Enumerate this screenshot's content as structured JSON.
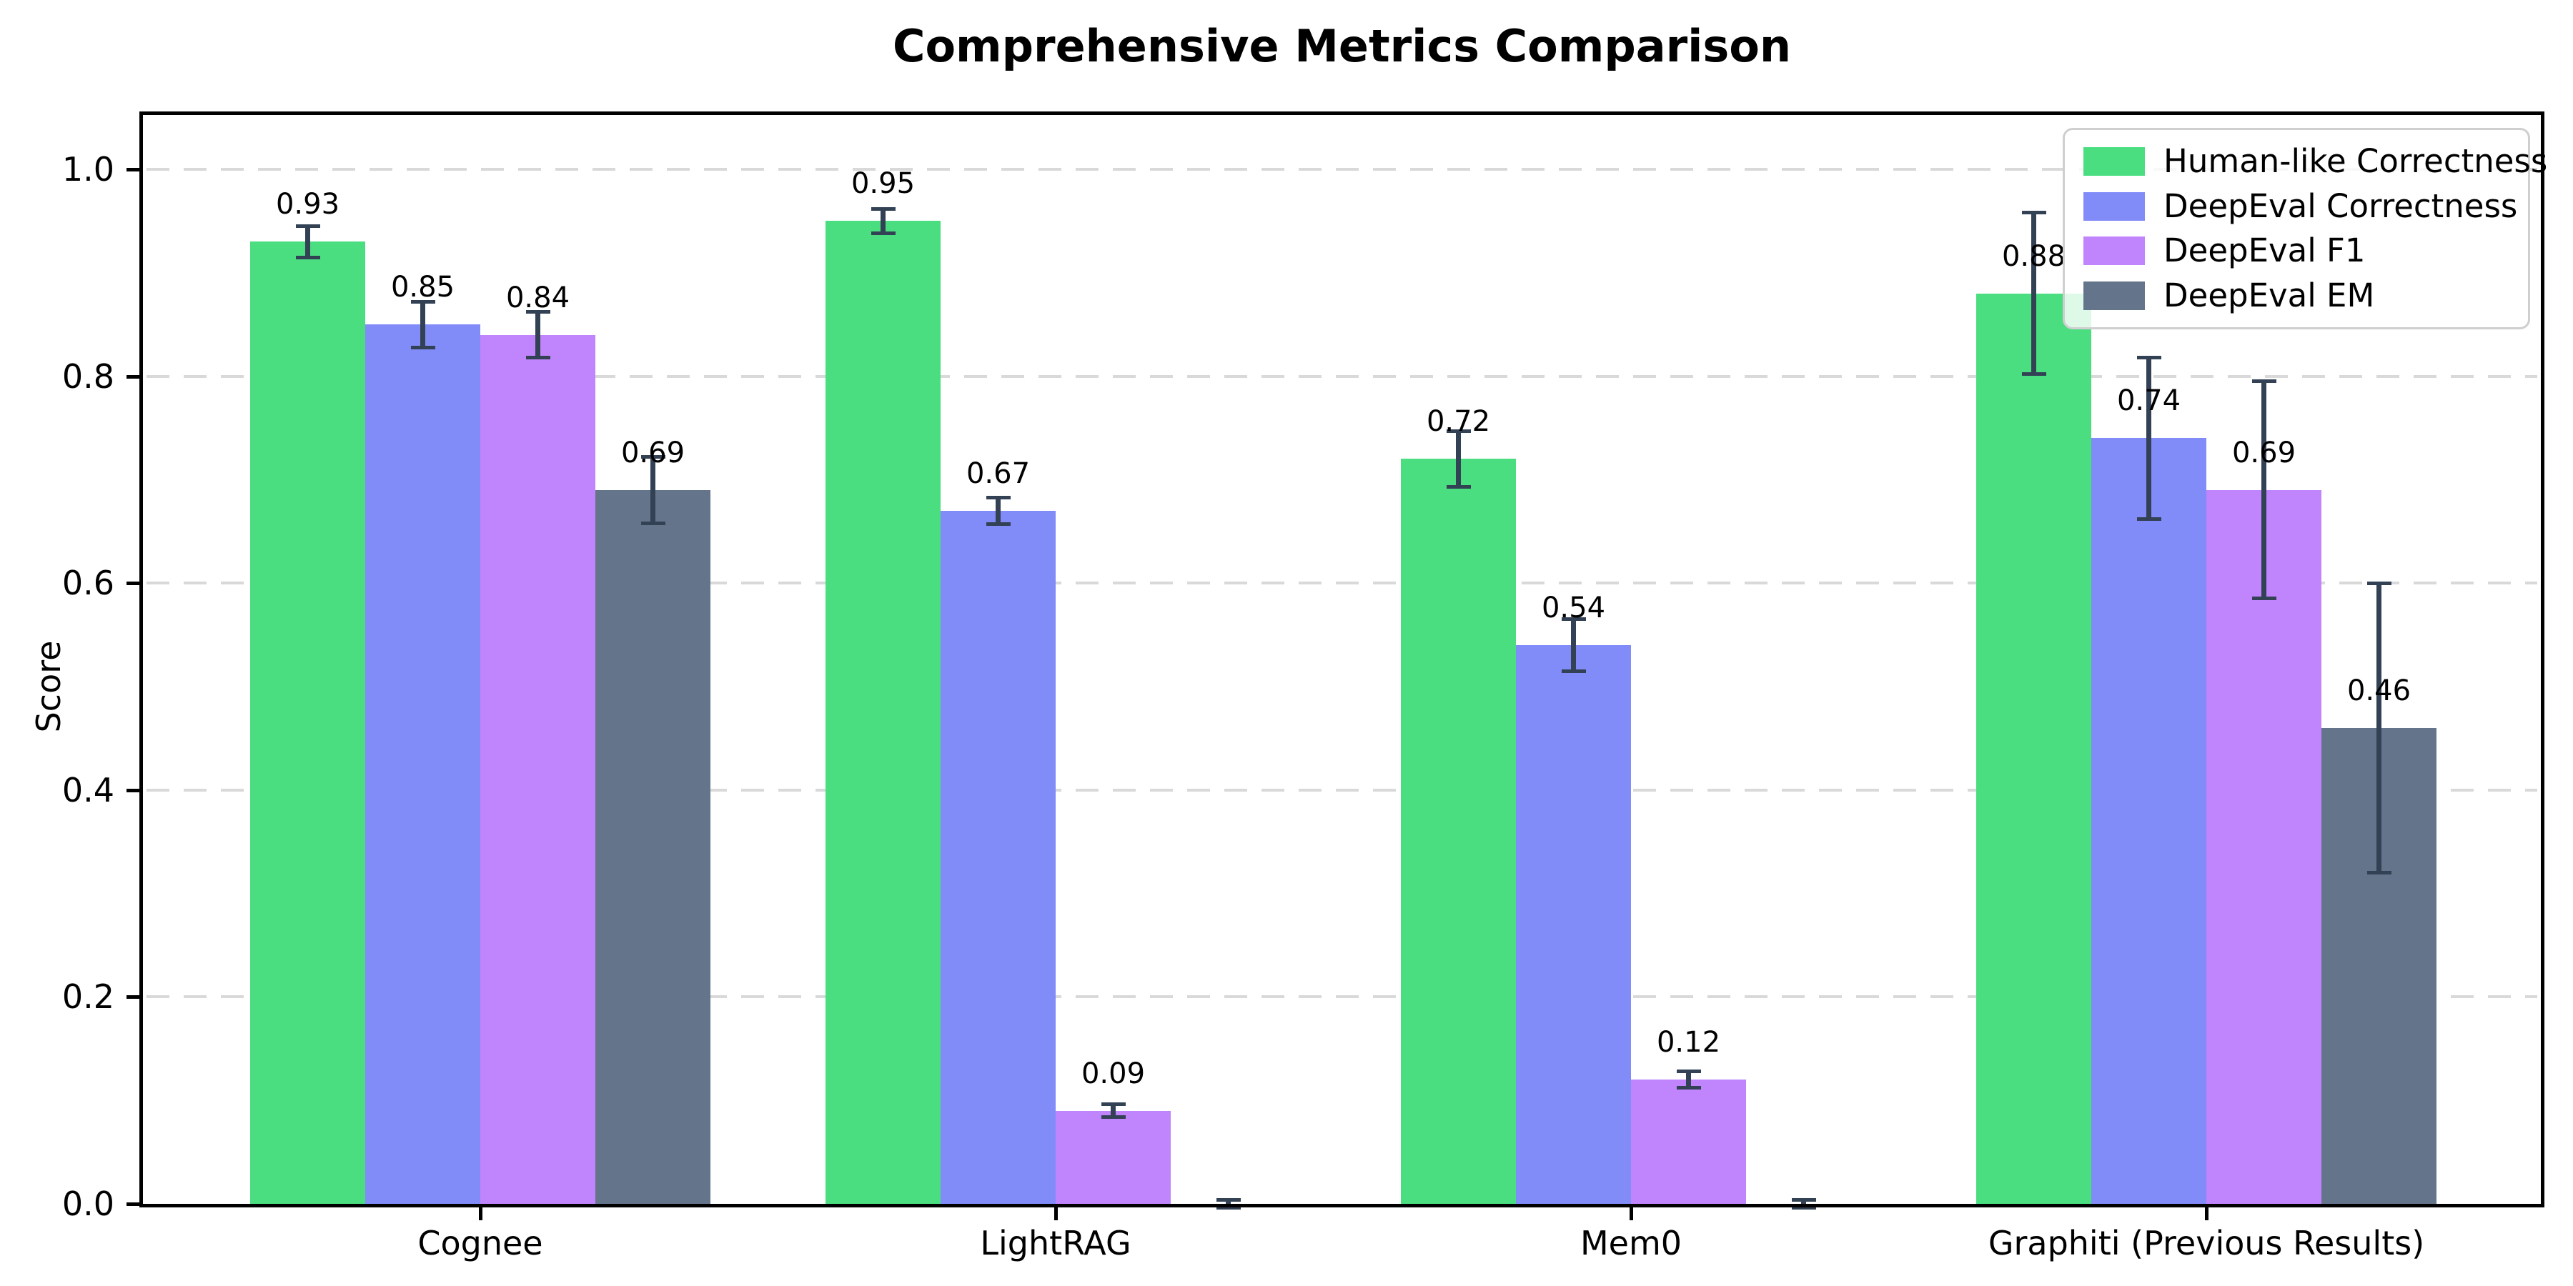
{
  "title": "Comprehensive Metrics Comparison",
  "chart_data": {
    "type": "bar",
    "title": "Comprehensive Metrics Comparison",
    "xlabel": "",
    "ylabel": "Score",
    "ylim": [
      0.0,
      1.05
    ],
    "yticks": [
      0.0,
      0.2,
      0.4,
      0.6,
      0.8,
      1.0
    ],
    "ytick_labels": [
      "0.0",
      "0.2",
      "0.4",
      "0.6",
      "0.8",
      "1.0"
    ],
    "grid": "horizontal dashed",
    "legend_position": "upper right",
    "background_color": "#ffffff",
    "error_bar_color": "#334155",
    "categories": [
      "Cognee",
      "LightRAG",
      "Mem0",
      "Graphiti (Previous Results)"
    ],
    "series": [
      {
        "name": "Human-like Correctness",
        "color": "#4ade80",
        "values": [
          0.93,
          0.95,
          0.72,
          0.88
        ],
        "errors": [
          0.015,
          0.012,
          0.027,
          0.078
        ],
        "labels": [
          "0.93",
          "0.95",
          "0.72",
          "0.88"
        ]
      },
      {
        "name": "DeepEval Correctness",
        "color": "#818cf8",
        "values": [
          0.85,
          0.67,
          0.54,
          0.74
        ],
        "errors": [
          0.022,
          0.013,
          0.025,
          0.078
        ],
        "labels": [
          "0.85",
          "0.67",
          "0.54",
          "0.74"
        ]
      },
      {
        "name": "DeepEval F1",
        "color": "#c084fc",
        "values": [
          0.84,
          0.09,
          0.12,
          0.69
        ],
        "errors": [
          0.022,
          0.006,
          0.008,
          0.105
        ],
        "labels": [
          "0.84",
          "0.09",
          "0.12",
          "0.69"
        ]
      },
      {
        "name": "DeepEval EM",
        "color": "#64748b",
        "values": [
          0.69,
          0.0,
          0.0,
          0.46
        ],
        "errors": [
          0.032,
          0.004,
          0.004,
          0.14
        ],
        "labels": [
          "0.69",
          null,
          null,
          "0.46"
        ]
      }
    ]
  }
}
